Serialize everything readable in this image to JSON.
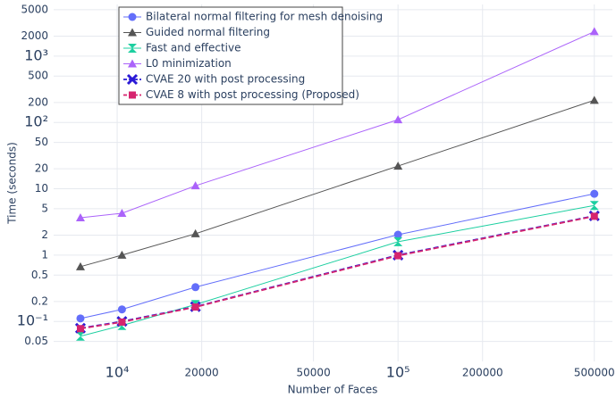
{
  "chart_data": {
    "type": "line",
    "x_label": "Number of Faces",
    "y_label": "Time (seconds)",
    "log_x": true,
    "log_y": true,
    "grid": true,
    "legend": "top-left",
    "x": [
      7400,
      10400,
      19000,
      100000,
      500000
    ],
    "xlim": [
      5940,
      580000
    ],
    "xticks": [
      {
        "value": 10000,
        "label": "10⁴"
      },
      20000,
      50000,
      {
        "value": 100000,
        "label": "10⁵"
      },
      200000,
      500000
    ],
    "ylim": [
      0.025,
      6000
    ],
    "yticks": [
      0.05,
      {
        "value": 0.1,
        "label": "10⁻¹"
      },
      0.2,
      0.5,
      1,
      2,
      5,
      10,
      20,
      50,
      {
        "value": 100,
        "label": "10²"
      },
      200,
      500,
      {
        "value": 1000,
        "label": "10³"
      },
      2000,
      5000
    ],
    "series": [
      {
        "name": "Bilateral normal filtering for mesh denoising",
        "color": "#636efa",
        "marker": "circle",
        "dash": false,
        "values": [
          0.111,
          0.152,
          0.329,
          2.03,
          8.4
        ]
      },
      {
        "name": "Guided normal filtering",
        "color": "#555555",
        "marker": "triangle",
        "dash": false,
        "values": [
          0.67,
          1.0,
          2.1,
          22,
          216
        ]
      },
      {
        "name": "Fast and effective",
        "color": "#1ccfa0",
        "marker": "bowtie",
        "dash": false,
        "values": [
          0.06,
          0.087,
          0.18,
          1.59,
          5.6
        ]
      },
      {
        "name": "L0 minimization",
        "color": "#ab63fa",
        "marker": "triangle",
        "dash": false,
        "values": [
          3.66,
          4.27,
          11.1,
          110,
          2340
        ]
      },
      {
        "name": "CVAE 20 with post processing",
        "color": "#2a1ad6",
        "marker": "x",
        "dash": true,
        "values": [
          0.079,
          0.1,
          0.167,
          1.0,
          3.9
        ]
      },
      {
        "name": "CVAE 8 with post processing (Proposed)",
        "color": "#d6246e",
        "marker": "square",
        "dash": true,
        "values": [
          0.078,
          0.098,
          0.165,
          0.98,
          3.85
        ]
      }
    ]
  }
}
